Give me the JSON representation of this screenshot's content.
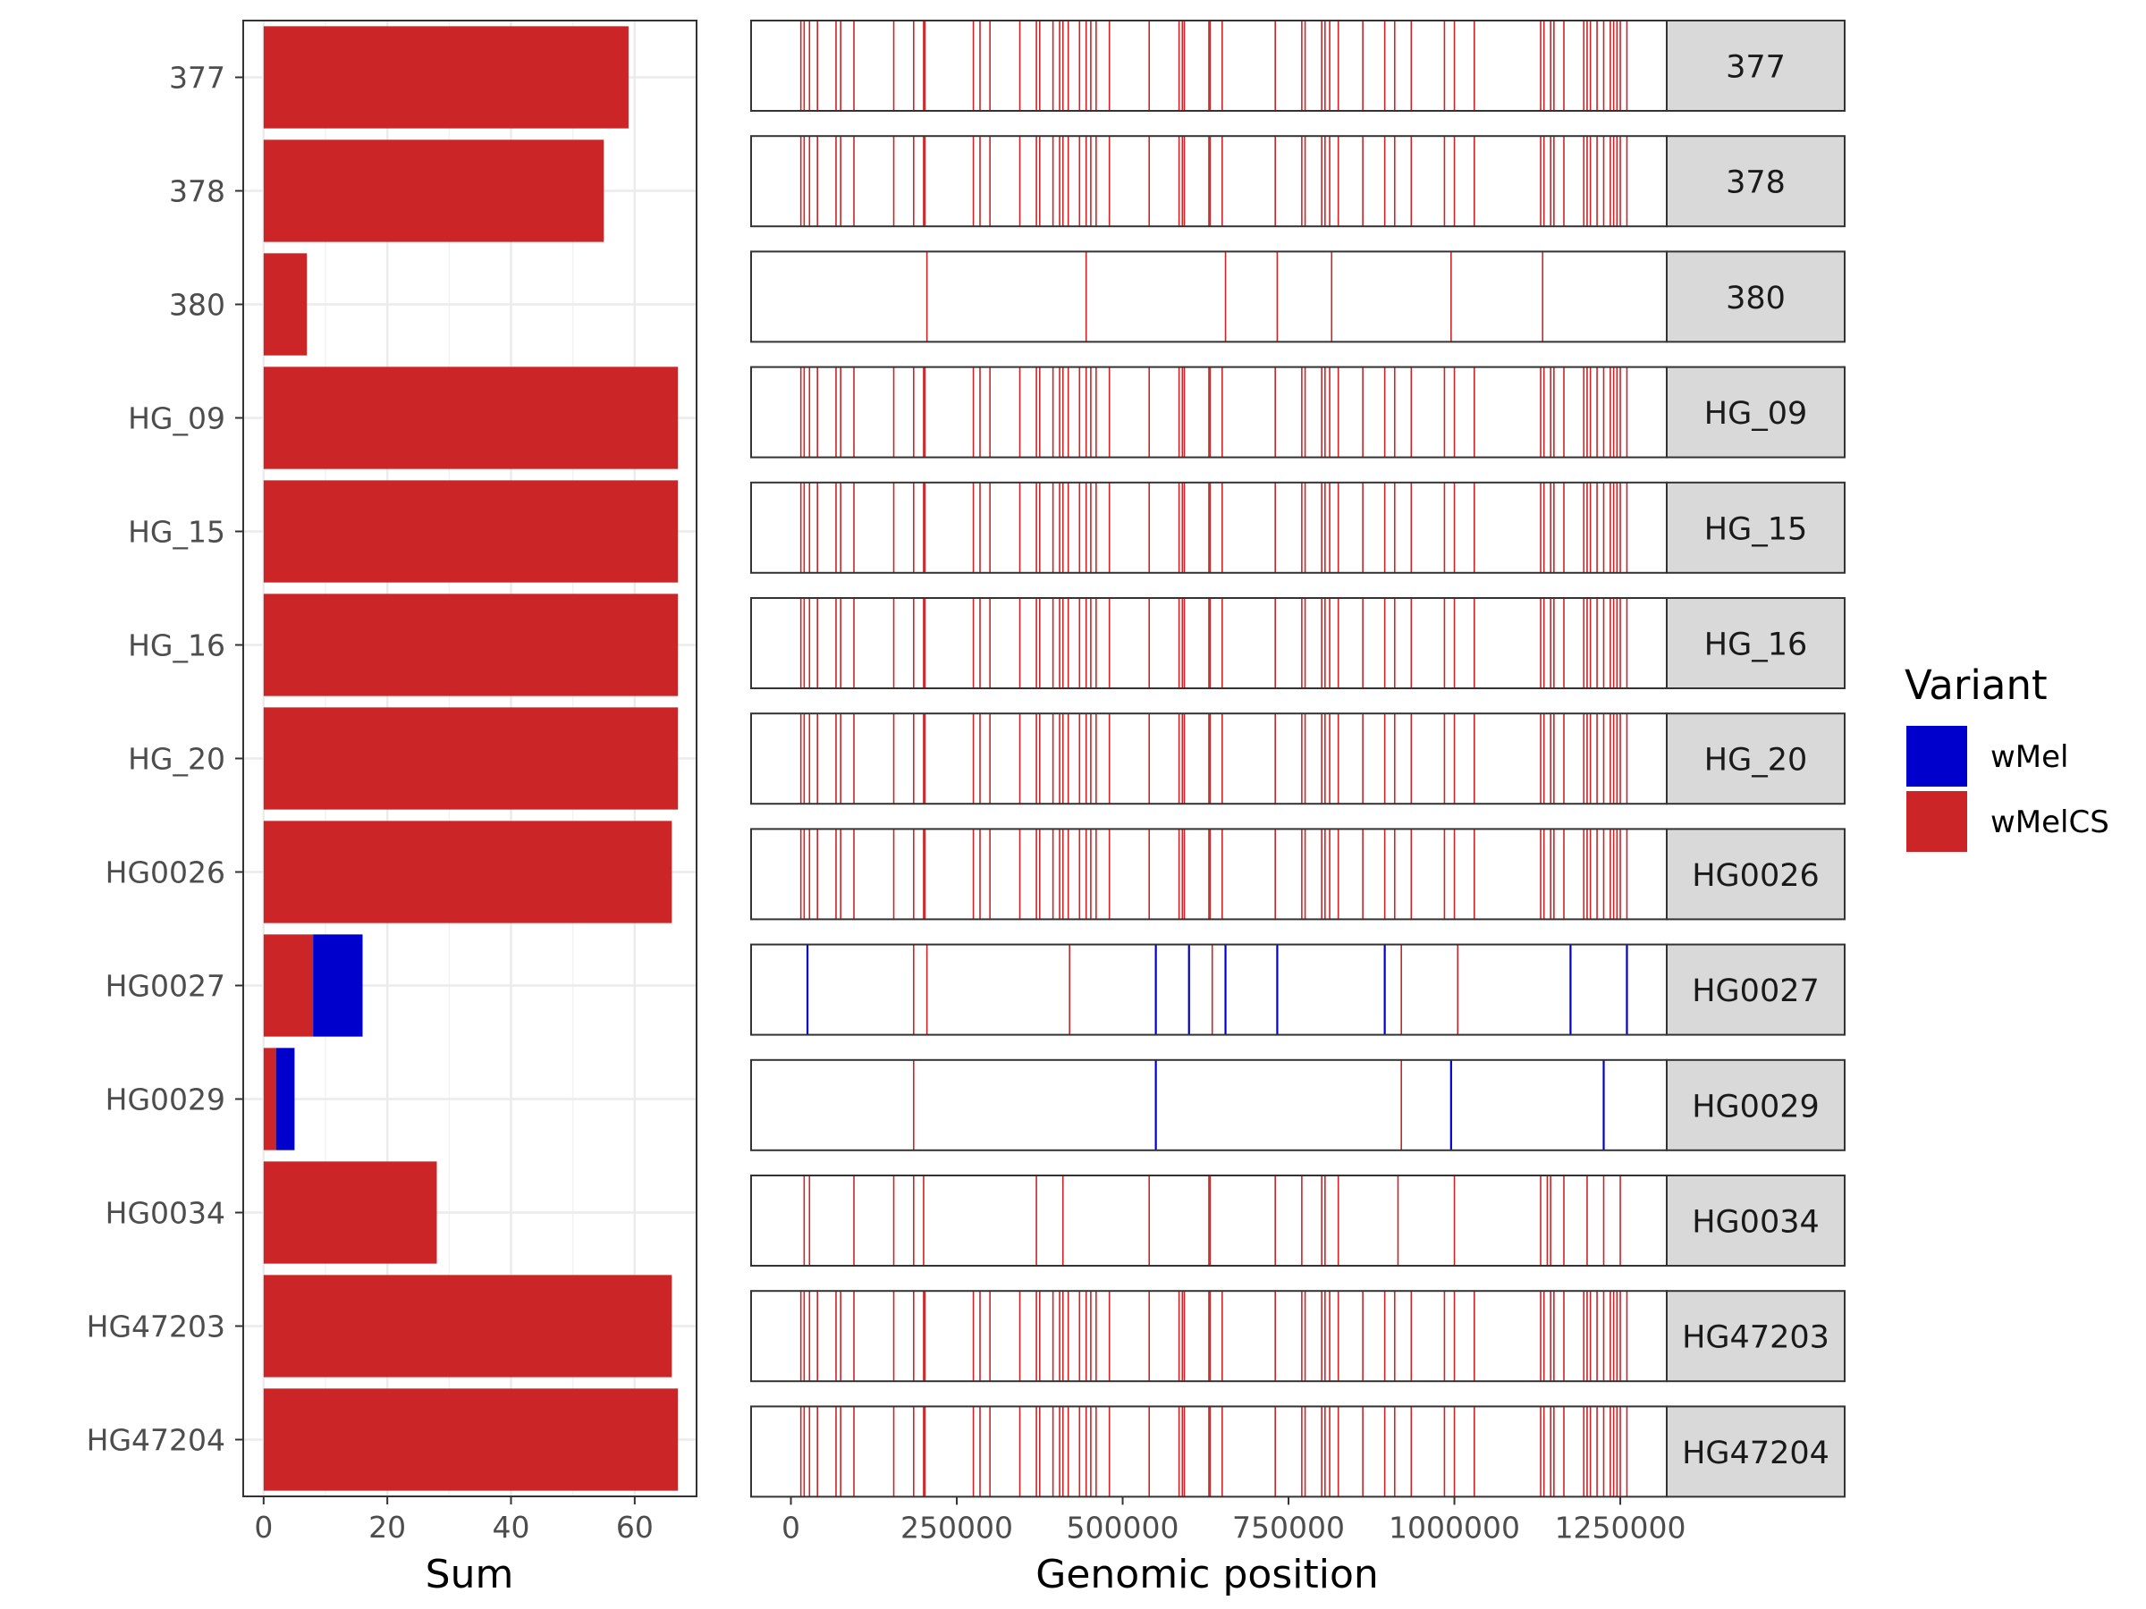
{
  "chart_data": [
    {
      "type": "bar",
      "orientation": "horizontal",
      "stacked": true,
      "xlabel": "Sum",
      "ylabel": "",
      "xlim": [
        -3.3,
        70
      ],
      "xticks": [
        0,
        20,
        40,
        60
      ],
      "grid": true,
      "categories": [
        "377",
        "378",
        "380",
        "HG_09",
        "HG_15",
        "HG_16",
        "HG_20",
        "HG0026",
        "HG0027",
        "HG0029",
        "HG0034",
        "HG47203",
        "HG47204"
      ],
      "series": [
        {
          "name": "wMelCS",
          "color": "#cc2527",
          "values": [
            59,
            55,
            7,
            67,
            67,
            67,
            67,
            66,
            8,
            2,
            28,
            66,
            67
          ]
        },
        {
          "name": "wMel",
          "color": "#0000cc",
          "values": [
            0,
            0,
            0,
            0,
            0,
            0,
            0,
            0,
            8,
            3,
            0,
            0,
            0
          ]
        }
      ]
    },
    {
      "type": "strip",
      "xlabel": "Genomic position",
      "xlim": [
        -60000,
        1320000
      ],
      "xticks": [
        0,
        250000,
        500000,
        750000,
        1000000,
        1250000
      ],
      "facets": [
        "377",
        "378",
        "380",
        "HG_09",
        "HG_15",
        "HG_16",
        "HG_20",
        "HG0026",
        "HG0027",
        "HG0029",
        "HG0034",
        "HG47203",
        "HG47204"
      ],
      "position_sets": {
        "full": [
          15000,
          20000,
          28000,
          40000,
          68000,
          75000,
          95000,
          155000,
          185000,
          200000,
          202000,
          275000,
          285000,
          300000,
          345000,
          370000,
          375000,
          395000,
          405000,
          410000,
          418000,
          435000,
          445000,
          452000,
          460000,
          480000,
          540000,
          585000,
          590000,
          593000,
          630000,
          632000,
          650000,
          730000,
          770000,
          775000,
          800000,
          805000,
          812000,
          825000,
          862000,
          895000,
          910000,
          935000,
          985000,
          1000000,
          1030000,
          1130000,
          1135000,
          1145000,
          1150000,
          1165000,
          1195000,
          1200000,
          1205000,
          1215000,
          1225000,
          1235000,
          1240000,
          1245000,
          1250000,
          1260000
        ],
        "hg0034": [
          20000,
          28000,
          95000,
          155000,
          185000,
          200000,
          370000,
          410000,
          540000,
          630000,
          632000,
          730000,
          770000,
          800000,
          805000,
          825000,
          915000,
          1000000,
          1130000,
          1140000,
          1145000,
          1165000,
          1200000,
          1225000,
          1250000
        ]
      },
      "tracks": {
        "377": {
          "wMelCS": "full",
          "wMel": []
        },
        "378": {
          "wMelCS": "full",
          "wMel": []
        },
        "380": {
          "wMelCS": [
            205000,
            445000,
            655000,
            733000,
            815000,
            995000,
            1133000
          ],
          "wMel": []
        },
        "HG_09": {
          "wMelCS": "full",
          "wMel": []
        },
        "HG_15": {
          "wMelCS": "full",
          "wMel": []
        },
        "HG_16": {
          "wMelCS": "full",
          "wMel": []
        },
        "HG_20": {
          "wMelCS": "full",
          "wMel": []
        },
        "HG0026": {
          "wMelCS": "full",
          "wMel": []
        },
        "HG0027": {
          "wMelCS": [
            185000,
            205000,
            420000,
            635000,
            920000,
            1005000
          ],
          "wMel": [
            25000,
            550000,
            600000,
            655000,
            733000,
            895000,
            1175000,
            1260000
          ]
        },
        "HG0029": {
          "wMelCS": [
            185000,
            920000
          ],
          "wMel": [
            550000,
            995000,
            1225000
          ]
        },
        "HG0034": {
          "wMelCS": "hg0034",
          "wMel": []
        },
        "HG47203": {
          "wMelCS": "full",
          "wMel": []
        },
        "HG47204": {
          "wMelCS": "full",
          "wMel": []
        }
      }
    }
  ],
  "legend": {
    "title": "Variant",
    "items": [
      {
        "label": "wMel",
        "color": "#0000cc"
      },
      {
        "label": "wMelCS",
        "color": "#cc2527"
      }
    ]
  }
}
